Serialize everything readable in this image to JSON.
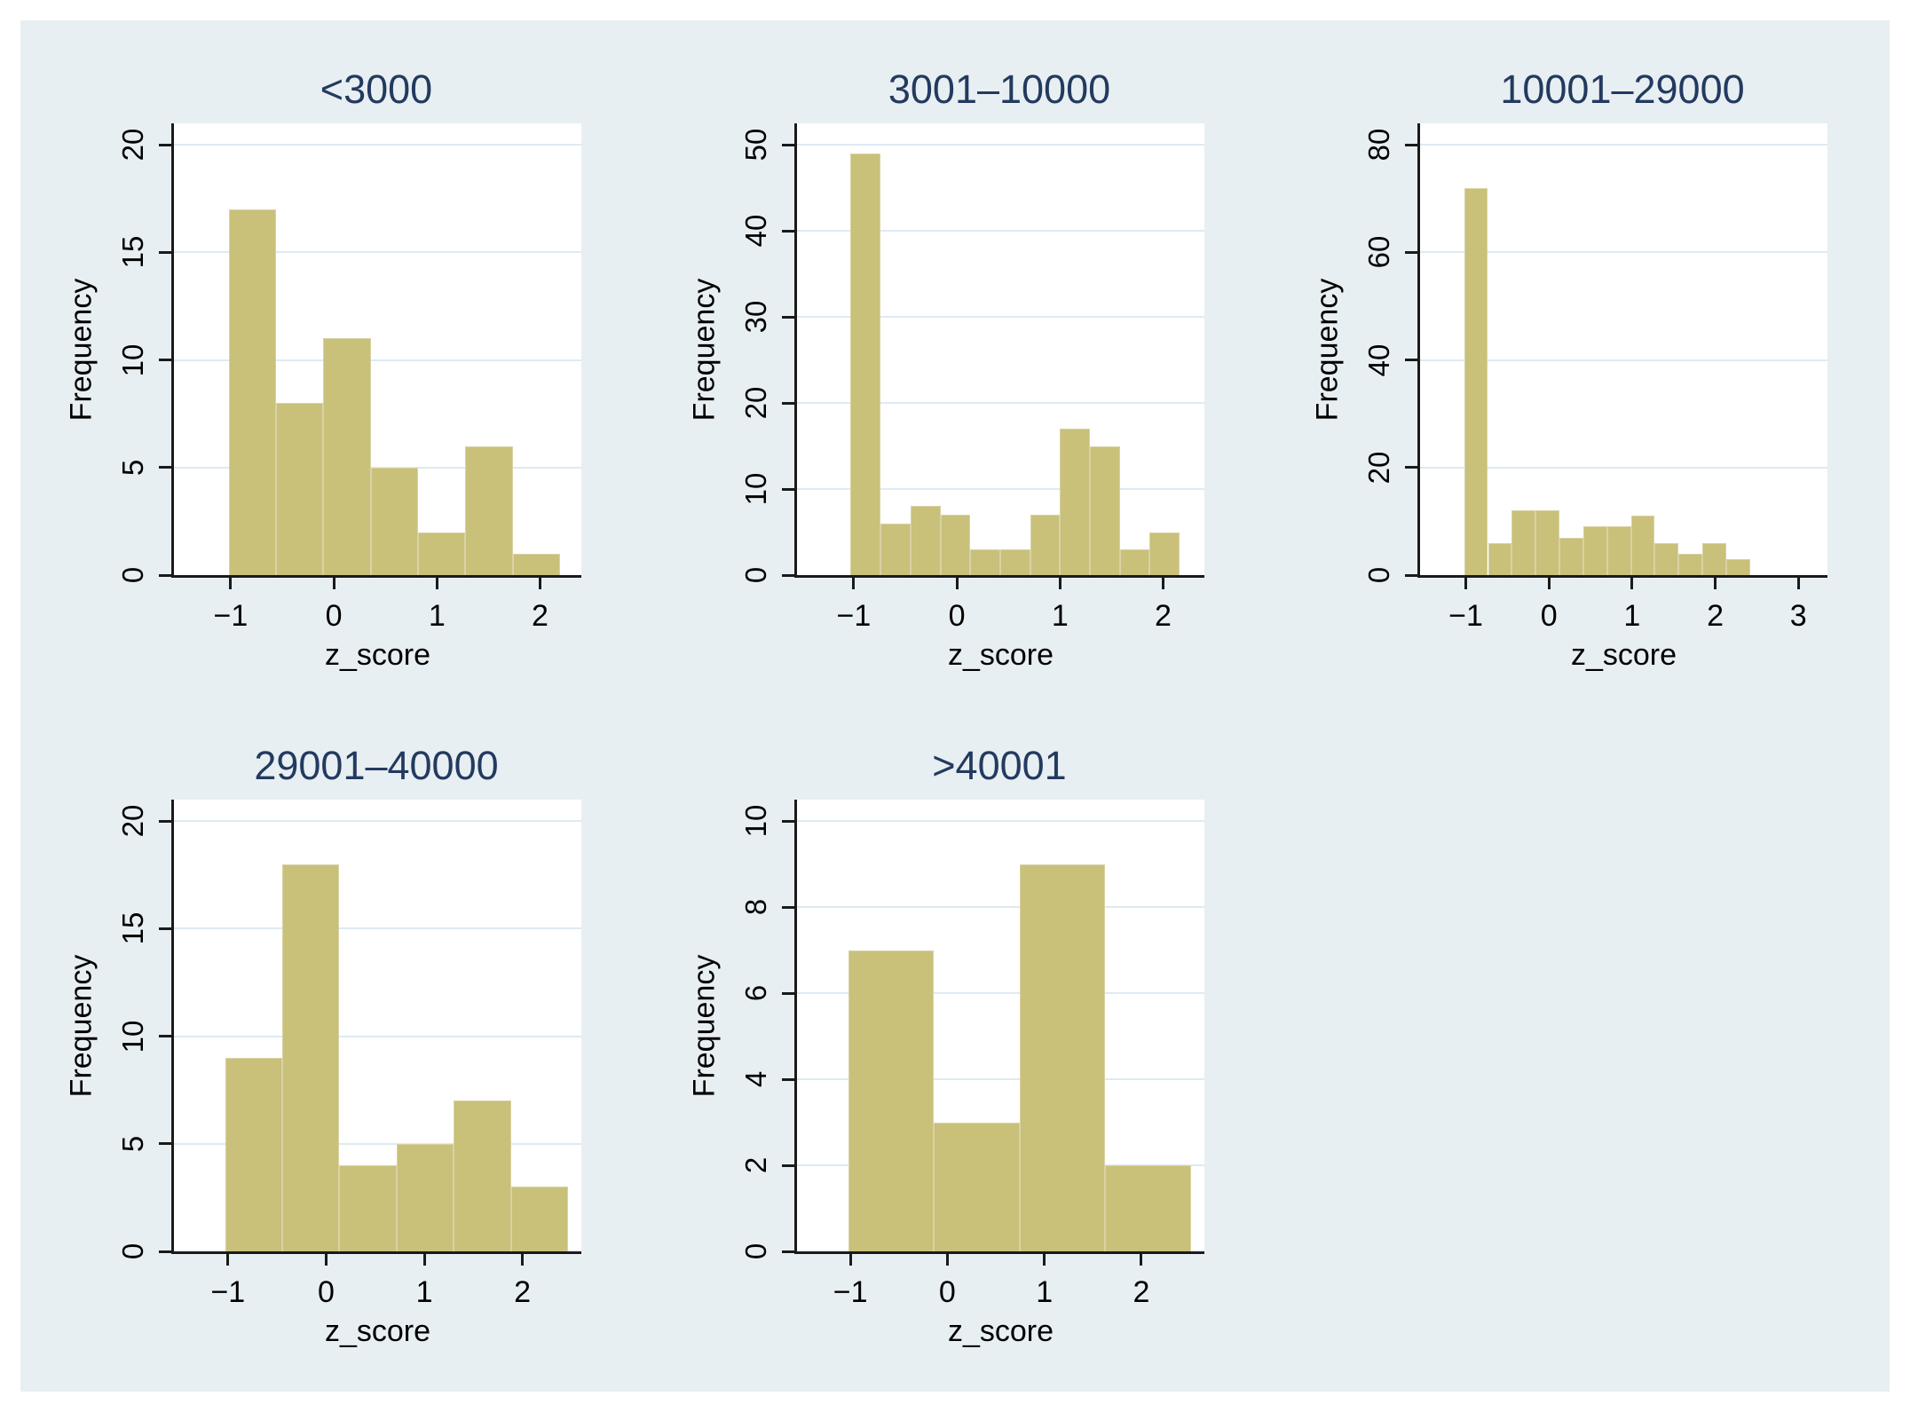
{
  "page": {
    "background": "#ffffff",
    "canvas_background": "#e8eff2"
  },
  "styles": {
    "bar_fill": "#c9c07a",
    "bar_border": "#d9d2a4",
    "plot_background": "#ffffff",
    "grid_color": "#dfeaf2",
    "axis_color": "#1a1a1a",
    "title_color": "#233a60",
    "text_color": "#000000"
  },
  "chart_data": [
    {
      "type": "bar",
      "subtype": "histogram",
      "title": "<3000",
      "xlabel": "z_score",
      "ylabel": "Frequency",
      "bin_start": -1.02,
      "bin_width": 0.459,
      "values": [
        17,
        8,
        11,
        5,
        2,
        6,
        1
      ],
      "x_range": [
        -1.55,
        2.4
      ],
      "x_ticks": [
        -1,
        0,
        1,
        2
      ],
      "y_range": [
        0,
        21
      ],
      "y_ticks": [
        0,
        5,
        10,
        15,
        20
      ],
      "grid": true,
      "legend": "none"
    },
    {
      "type": "bar",
      "subtype": "histogram",
      "title": "3001–10000",
      "xlabel": "z_score",
      "ylabel": "Frequency",
      "bin_start": -1.03,
      "bin_width": 0.29,
      "values": [
        49,
        6,
        8,
        7,
        3,
        3,
        7,
        17,
        15,
        3,
        5
      ],
      "x_range": [
        -1.55,
        2.4
      ],
      "x_ticks": [
        -1,
        0,
        1,
        2
      ],
      "y_range": [
        0,
        52.5
      ],
      "y_ticks": [
        0,
        10,
        20,
        30,
        40,
        50
      ],
      "grid": true,
      "legend": "none"
    },
    {
      "type": "bar",
      "subtype": "histogram",
      "title": "10001–29000",
      "xlabel": "z_score",
      "ylabel": "Frequency",
      "bin_start": -1.02,
      "bin_width": 0.2867,
      "values": [
        72,
        6,
        12,
        12,
        7,
        9,
        9,
        11,
        6,
        4,
        6,
        3
      ],
      "x_range": [
        -1.55,
        3.35
      ],
      "x_ticks": [
        -1,
        0,
        1,
        2,
        3
      ],
      "y_range": [
        0,
        84
      ],
      "y_ticks": [
        0,
        20,
        40,
        60,
        80
      ],
      "grid": true,
      "legend": "none"
    },
    {
      "type": "bar",
      "subtype": "histogram",
      "title": "29001–40000",
      "xlabel": "z_score",
      "ylabel": "Frequency",
      "bin_start": -1.03,
      "bin_width": 0.583,
      "values": [
        9,
        18,
        4,
        5,
        7,
        3
      ],
      "x_range": [
        -1.55,
        2.6
      ],
      "x_ticks": [
        -1,
        0,
        1,
        2
      ],
      "y_range": [
        0,
        21
      ],
      "y_ticks": [
        0,
        5,
        10,
        15,
        20
      ],
      "grid": true,
      "legend": "none"
    },
    {
      "type": "bar",
      "subtype": "histogram",
      "title": ">40001",
      "xlabel": "z_score",
      "ylabel": "Frequency",
      "bin_start": -1.02,
      "bin_width": 0.883,
      "values": [
        7,
        3,
        9,
        2
      ],
      "x_range": [
        -1.55,
        2.65
      ],
      "x_ticks": [
        -1,
        0,
        1,
        2
      ],
      "y_range": [
        0,
        10.5
      ],
      "y_ticks": [
        0,
        2,
        4,
        6,
        8,
        10
      ],
      "grid": true,
      "legend": "none"
    }
  ]
}
